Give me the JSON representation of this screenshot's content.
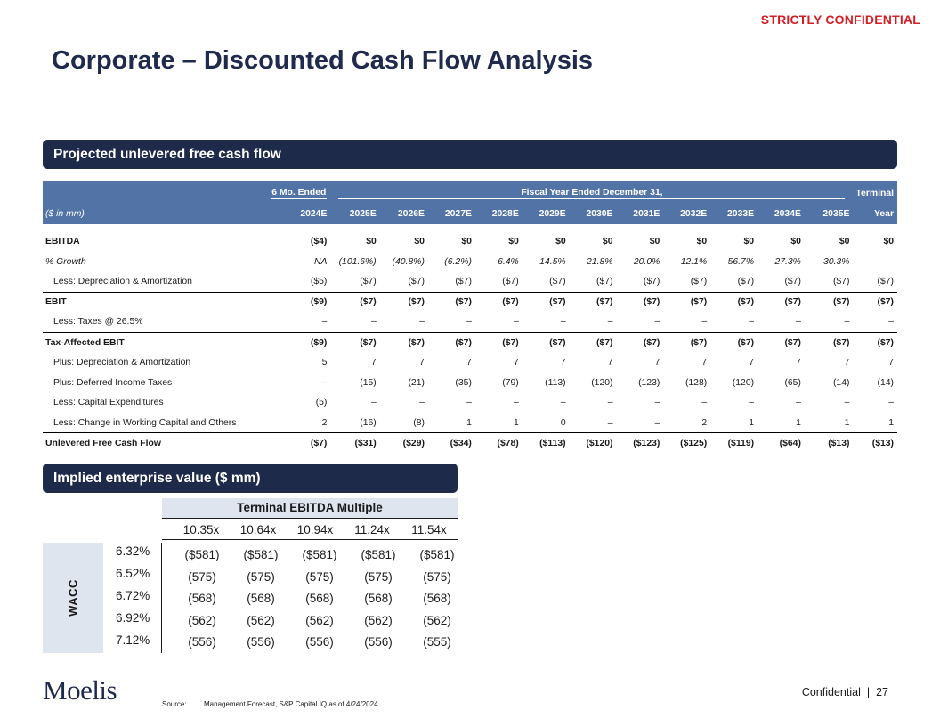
{
  "header": {
    "confidential_tag": "STRICTLY CONFIDENTIAL",
    "title": "Corporate – Discounted Cash Flow Analysis"
  },
  "section1": {
    "title": "Projected unlevered free cash flow"
  },
  "cash_flow_table": {
    "group_headers": {
      "six_month": "6 Mo. Ended",
      "fiscal": "Fiscal Year Ended December 31,",
      "terminal": "Terminal"
    },
    "units_label": "($ in mm)",
    "columns": [
      "2024E",
      "2025E",
      "2026E",
      "2027E",
      "2028E",
      "2029E",
      "2030E",
      "2031E",
      "2032E",
      "2033E",
      "2034E",
      "2035E",
      "Year"
    ],
    "rows": [
      {
        "label": "EBITDA",
        "values": [
          "($4)",
          "$0",
          "$0",
          "$0",
          "$0",
          "$0",
          "$0",
          "$0",
          "$0",
          "$0",
          "$0",
          "$0",
          "$0"
        ]
      },
      {
        "label": "% Growth",
        "values": [
          "NA",
          "(101.6%)",
          "(40.8%)",
          "(6.2%)",
          "6.4%",
          "14.5%",
          "21.8%",
          "20.0%",
          "12.1%",
          "56.7%",
          "27.3%",
          "30.3%",
          ""
        ]
      },
      {
        "label": "Less: Depreciation & Amortization",
        "values": [
          "($5)",
          "($7)",
          "($7)",
          "($7)",
          "($7)",
          "($7)",
          "($7)",
          "($7)",
          "($7)",
          "($7)",
          "($7)",
          "($7)",
          "($7)"
        ]
      },
      {
        "label": "EBIT",
        "values": [
          "($9)",
          "($7)",
          "($7)",
          "($7)",
          "($7)",
          "($7)",
          "($7)",
          "($7)",
          "($7)",
          "($7)",
          "($7)",
          "($7)",
          "($7)"
        ]
      },
      {
        "label": "Less: Taxes @ 26.5%",
        "values": [
          "–",
          "–",
          "–",
          "–",
          "–",
          "–",
          "–",
          "–",
          "–",
          "–",
          "–",
          "–",
          "–"
        ]
      },
      {
        "label": "Tax-Affected EBIT",
        "values": [
          "($9)",
          "($7)",
          "($7)",
          "($7)",
          "($7)",
          "($7)",
          "($7)",
          "($7)",
          "($7)",
          "($7)",
          "($7)",
          "($7)",
          "($7)"
        ]
      },
      {
        "label": "Plus: Depreciation & Amortization",
        "values": [
          "5",
          "7",
          "7",
          "7",
          "7",
          "7",
          "7",
          "7",
          "7",
          "7",
          "7",
          "7",
          "7"
        ]
      },
      {
        "label": "Plus: Deferred Income Taxes",
        "values": [
          "–",
          "(15)",
          "(21)",
          "(35)",
          "(79)",
          "(113)",
          "(120)",
          "(123)",
          "(128)",
          "(120)",
          "(65)",
          "(14)",
          "(14)"
        ]
      },
      {
        "label": "Less: Capital Expenditures",
        "values": [
          "(5)",
          "–",
          "–",
          "–",
          "–",
          "–",
          "–",
          "–",
          "–",
          "–",
          "–",
          "–",
          "–"
        ]
      },
      {
        "label": "Less: Change in Working Capital and Others",
        "values": [
          "2",
          "(16)",
          "(8)",
          "1",
          "1",
          "0",
          "–",
          "–",
          "2",
          "1",
          "1",
          "1",
          "1"
        ]
      },
      {
        "label": "Unlevered Free Cash Flow",
        "values": [
          "($7)",
          "($31)",
          "($29)",
          "($34)",
          "($78)",
          "($113)",
          "($120)",
          "($123)",
          "($125)",
          "($119)",
          "($64)",
          "($13)",
          "($13)"
        ]
      }
    ]
  },
  "section2": {
    "title": "Implied enterprise value ($ mm)"
  },
  "sensitivity": {
    "col_header": "Terminal EBITDA Multiple",
    "row_header": "WACC",
    "multiples": [
      "10.35x",
      "10.64x",
      "10.94x",
      "11.24x",
      "11.54x"
    ],
    "rows": [
      {
        "wacc": "6.32%",
        "values": [
          "($581)",
          "($581)",
          "($581)",
          "($581)",
          "($581)"
        ]
      },
      {
        "wacc": "6.52%",
        "values": [
          "(575)",
          "(575)",
          "(575)",
          "(575)",
          "(575)"
        ]
      },
      {
        "wacc": "6.72%",
        "values": [
          "(568)",
          "(568)",
          "(568)",
          "(568)",
          "(568)"
        ]
      },
      {
        "wacc": "6.92%",
        "values": [
          "(562)",
          "(562)",
          "(562)",
          "(562)",
          "(562)"
        ]
      },
      {
        "wacc": "7.12%",
        "values": [
          "(556)",
          "(556)",
          "(556)",
          "(556)",
          "(555)"
        ]
      }
    ]
  },
  "footer": {
    "logo": "Moelis",
    "source_label": "Source:",
    "source_text": "Management Forecast, S&P Capital IQ as of 4/24/2024",
    "confidential": "Confidential",
    "separator": "|",
    "page_number": "27"
  }
}
